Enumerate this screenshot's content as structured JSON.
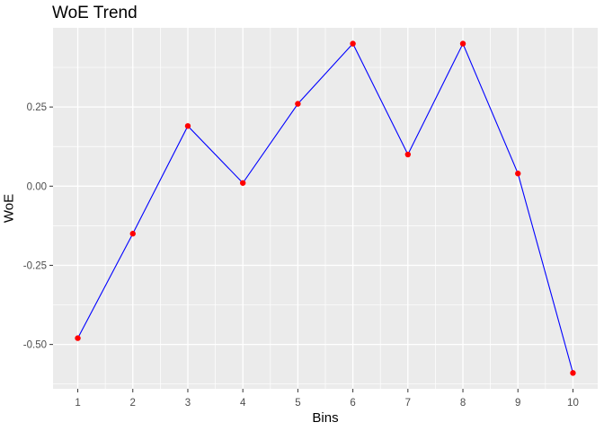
{
  "window": {
    "background": "#FFFFFF"
  },
  "chart_data": {
    "type": "line",
    "title": "WoE Trend",
    "xlabel": "Bins",
    "ylabel": "WoE",
    "x": [
      1,
      2,
      3,
      4,
      5,
      6,
      7,
      8,
      9,
      10
    ],
    "series": [
      {
        "name": "WoE",
        "values": [
          -0.48,
          -0.15,
          0.19,
          0.01,
          0.26,
          0.45,
          0.1,
          0.45,
          0.04,
          -0.59
        ]
      }
    ],
    "x_ticks": [
      1,
      2,
      3,
      4,
      5,
      6,
      7,
      8,
      9,
      10
    ],
    "x_tick_labels": [
      "1",
      "2",
      "3",
      "4",
      "5",
      "6",
      "7",
      "8",
      "9",
      "10"
    ],
    "y_ticks": [
      0.25,
      0.0,
      -0.25,
      -0.5
    ],
    "y_tick_labels": [
      "0.25",
      "0.00",
      "-0.25",
      "-0.50"
    ],
    "x_minor": [
      1.5,
      2.5,
      3.5,
      4.5,
      5.5,
      6.5,
      7.5,
      8.5,
      9.5
    ],
    "y_minor": [
      0.375,
      0.125,
      -0.125,
      -0.375,
      -0.625
    ],
    "xlim": [
      0.55,
      10.45
    ],
    "ylim": [
      -0.64,
      0.5
    ],
    "grid": "white major and minor gridlines on grey panel",
    "legend": "none",
    "style": {
      "panel_bg": "#EBEBEB",
      "grid_color": "#FFFFFF",
      "line_color": "#0000FF",
      "point_color": "#FF0000",
      "tick_mark_color": "#333333",
      "tick_label_color": "#4D4D4D",
      "title_color": "#000000",
      "axis_title_color": "#000000"
    }
  }
}
